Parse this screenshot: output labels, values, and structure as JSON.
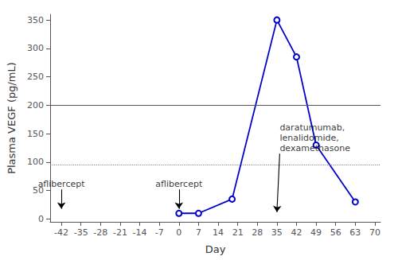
{
  "chart_data": {
    "type": "line",
    "x": [
      0,
      7,
      19,
      35,
      42,
      49,
      63
    ],
    "values": [
      10,
      10,
      35,
      350,
      285,
      130,
      30
    ],
    "color": "#0000CD",
    "marker": "circle",
    "xlabel": "Day",
    "ylabel": "Plasma VEGF (pg/mL)",
    "xlim": [
      -46,
      72
    ],
    "ylim": [
      -5,
      360
    ],
    "xticks": [
      -42,
      -35,
      -28,
      -21,
      -14,
      -7,
      0,
      7,
      14,
      21,
      28,
      35,
      42,
      49,
      56,
      63,
      70
    ],
    "yticks": [
      0,
      50,
      100,
      150,
      200,
      250,
      300,
      350
    ],
    "grid": false,
    "hlines": [
      {
        "y": 200,
        "color": "#555555",
        "line_style": "solid"
      },
      {
        "y": 95,
        "color": "#888888",
        "line_style": "dotted"
      }
    ],
    "annotations": [
      {
        "text": "aflibercept",
        "x": -42,
        "y": 52,
        "arrow_x": -42,
        "arrow_y": 18
      },
      {
        "text": "aflibercept",
        "x": 0,
        "y": 52,
        "arrow_x": 0,
        "arrow_y": 18
      },
      {
        "text": "daratumumab,\nlenalidomide,\ndexamethasone",
        "x": 36,
        "y": 115,
        "arrow_x": 35,
        "arrow_y": 12
      }
    ]
  }
}
